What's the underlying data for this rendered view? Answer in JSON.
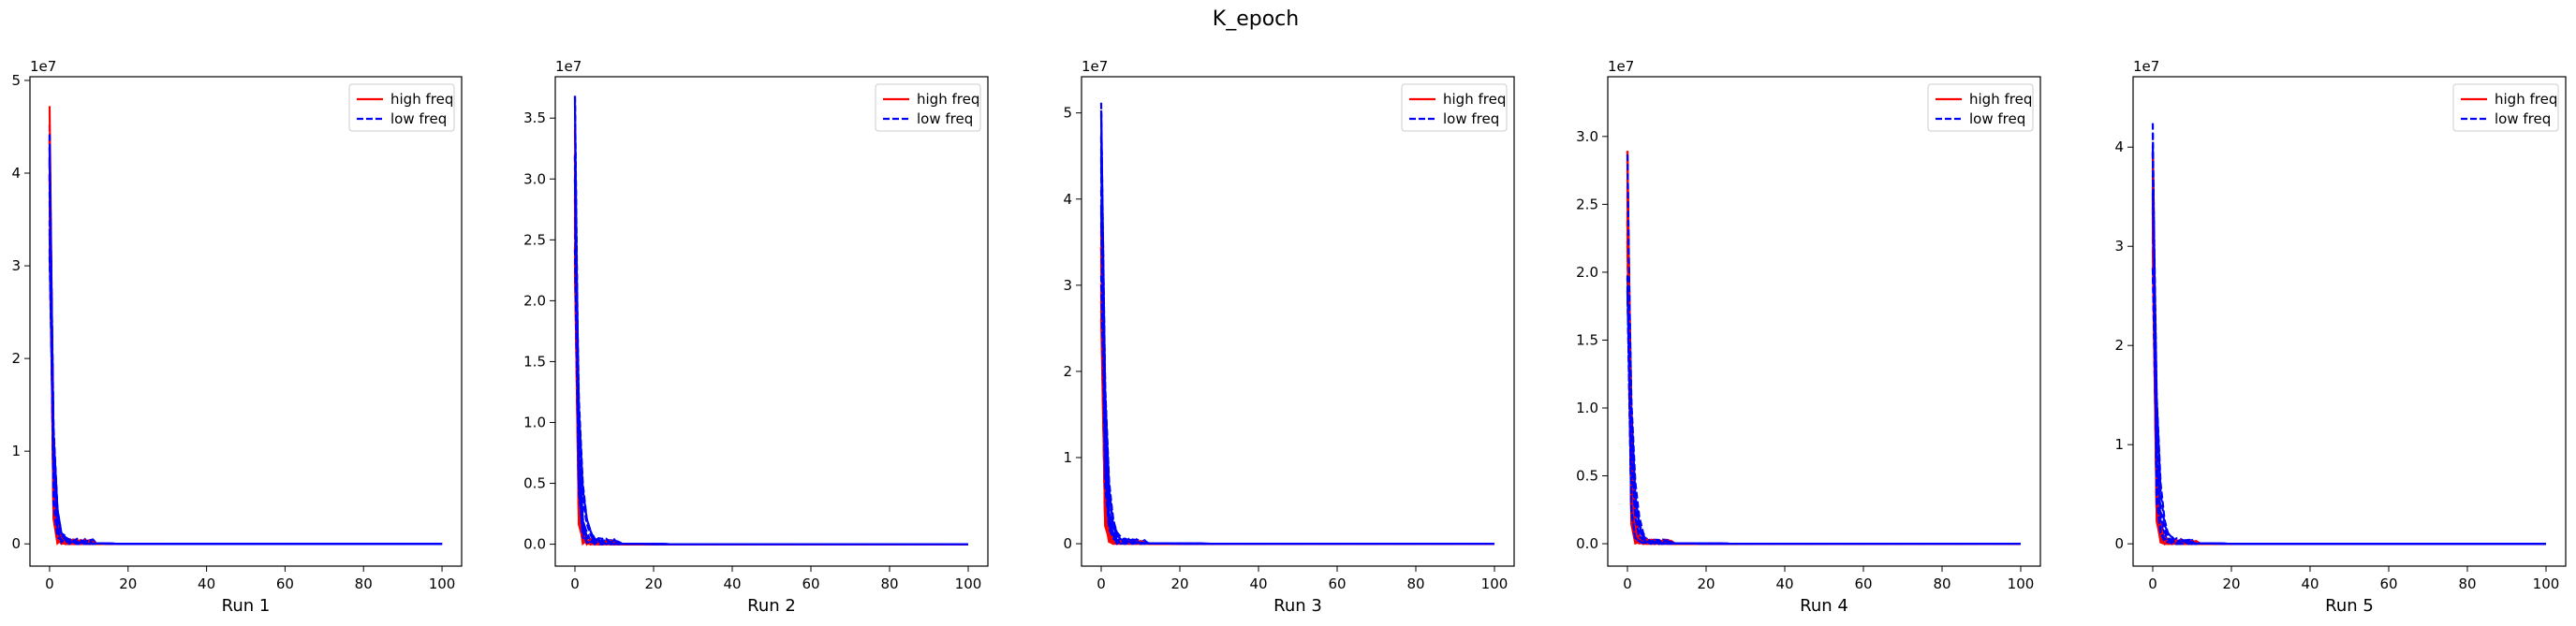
{
  "figure": {
    "title": "K_epoch"
  },
  "chart_data": [
    {
      "type": "line",
      "xlabel": "Run 1",
      "ylabel": "",
      "xlim": [
        -5,
        105
      ],
      "ylim": [
        -2400000,
        50400000
      ],
      "xticks": [
        0,
        20,
        40,
        60,
        80,
        100
      ],
      "yticks": [
        0,
        10000000,
        20000000,
        30000000,
        40000000,
        50000000
      ],
      "ytick_labels": [
        "0",
        "1",
        "2",
        "3",
        "4",
        "5"
      ],
      "y_offset_label": "1e7",
      "grid": false,
      "legend": {
        "position": "top-right",
        "entries": [
          {
            "name": "high freq",
            "color": "#ff0000",
            "style": "solid"
          },
          {
            "name": "low freq",
            "color": "#0000ff",
            "style": "dashed"
          }
        ]
      },
      "series": [
        {
          "name": "high freq",
          "color": "#ff0000",
          "style": "solid",
          "peak_range": [
            35000000,
            48000000
          ],
          "tail": 0.0,
          "count": 10
        },
        {
          "name": "low freq",
          "color": "#0000ff",
          "style": "dashed",
          "peak_range": [
            30000000,
            46000000
          ],
          "tail": 0.0,
          "count": 10
        }
      ]
    },
    {
      "type": "line",
      "xlabel": "Run 2",
      "ylabel": "",
      "xlim": [
        -5,
        105
      ],
      "ylim": [
        -1800000,
        38400000
      ],
      "xticks": [
        0,
        20,
        40,
        60,
        80,
        100
      ],
      "yticks": [
        0,
        5000000,
        10000000,
        15000000,
        20000000,
        25000000,
        30000000,
        35000000
      ],
      "ytick_labels": [
        "0.0",
        "0.5",
        "1.0",
        "1.5",
        "2.0",
        "2.5",
        "3.0",
        "3.5"
      ],
      "y_offset_label": "1e7",
      "grid": false,
      "legend": {
        "position": "top-right",
        "entries": [
          {
            "name": "high freq",
            "color": "#ff0000",
            "style": "solid"
          },
          {
            "name": "low freq",
            "color": "#0000ff",
            "style": "dashed"
          }
        ]
      },
      "series": [
        {
          "name": "high freq",
          "color": "#ff0000",
          "style": "solid",
          "peak_range": [
            20000000,
            34000000
          ],
          "tail": 0.0,
          "count": 10
        },
        {
          "name": "low freq",
          "color": "#0000ff",
          "style": "dashed",
          "peak_range": [
            22000000,
            36500000
          ],
          "tail": 0.0,
          "count": 10
        }
      ]
    },
    {
      "type": "line",
      "xlabel": "Run 3",
      "ylabel": "",
      "xlim": [
        -5,
        105
      ],
      "ylim": [
        -2600000,
        54200000
      ],
      "xticks": [
        0,
        20,
        40,
        60,
        80,
        100
      ],
      "yticks": [
        0,
        10000000,
        20000000,
        30000000,
        40000000,
        50000000
      ],
      "ytick_labels": [
        "0",
        "1",
        "2",
        "3",
        "4",
        "5"
      ],
      "y_offset_label": "1e7",
      "grid": false,
      "legend": {
        "position": "top-right",
        "entries": [
          {
            "name": "high freq",
            "color": "#ff0000",
            "style": "solid"
          },
          {
            "name": "low freq",
            "color": "#0000ff",
            "style": "dashed"
          }
        ]
      },
      "series": [
        {
          "name": "high freq",
          "color": "#ff0000",
          "style": "solid",
          "peak_range": [
            25000000,
            44000000
          ],
          "tail": 0.0,
          "count": 10
        },
        {
          "name": "low freq",
          "color": "#0000ff",
          "style": "dashed",
          "peak_range": [
            30000000,
            51500000
          ],
          "tail": 0.0,
          "count": 10
        }
      ]
    },
    {
      "type": "line",
      "xlabel": "Run 4",
      "ylabel": "",
      "xlim": [
        -5,
        105
      ],
      "ylim": [
        -1650000,
        34400000
      ],
      "xticks": [
        0,
        20,
        40,
        60,
        80,
        100
      ],
      "yticks": [
        0,
        5000000,
        10000000,
        15000000,
        20000000,
        25000000,
        30000000
      ],
      "ytick_labels": [
        "0.0",
        "0.5",
        "1.0",
        "1.5",
        "2.0",
        "2.5",
        "3.0"
      ],
      "y_offset_label": "1e7",
      "grid": false,
      "legend": {
        "position": "top-right",
        "entries": [
          {
            "name": "high freq",
            "color": "#ff0000",
            "style": "solid"
          },
          {
            "name": "low freq",
            "color": "#0000ff",
            "style": "dashed"
          }
        ]
      },
      "series": [
        {
          "name": "high freq",
          "color": "#ff0000",
          "style": "solid",
          "peak_range": [
            20000000,
            32800000
          ],
          "tail": 0.0,
          "count": 10
        },
        {
          "name": "low freq",
          "color": "#0000ff",
          "style": "dashed",
          "peak_range": [
            18000000,
            30500000
          ],
          "tail": 0.0,
          "count": 10
        }
      ]
    },
    {
      "type": "line",
      "xlabel": "Run 5",
      "ylabel": "",
      "xlim": [
        -5,
        105
      ],
      "ylim": [
        -2250000,
        47100000
      ],
      "xticks": [
        0,
        20,
        40,
        60,
        80,
        100
      ],
      "yticks": [
        0,
        10000000,
        20000000,
        30000000,
        40000000
      ],
      "ytick_labels": [
        "0",
        "1",
        "2",
        "3",
        "4"
      ],
      "y_offset_label": "1e7",
      "grid": false,
      "legend": {
        "position": "top-right",
        "entries": [
          {
            "name": "high freq",
            "color": "#ff0000",
            "style": "solid"
          },
          {
            "name": "low freq",
            "color": "#0000ff",
            "style": "dashed"
          }
        ]
      },
      "series": [
        {
          "name": "high freq",
          "color": "#ff0000",
          "style": "solid",
          "peak_range": [
            28000000,
            44800000
          ],
          "tail": 0.0,
          "count": 10
        },
        {
          "name": "low freq",
          "color": "#0000ff",
          "style": "dashed",
          "peak_range": [
            25000000,
            42000000
          ],
          "tail": 0.0,
          "count": 10
        }
      ]
    }
  ]
}
